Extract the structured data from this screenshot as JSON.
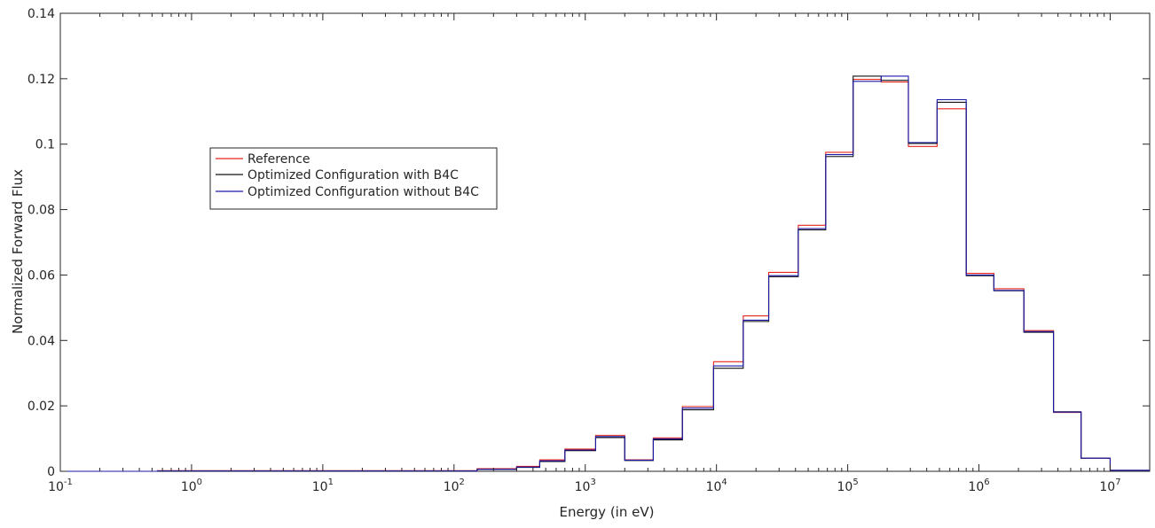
{
  "chart_data": {
    "type": "line",
    "step": true,
    "xlabel": "Energy (in eV)",
    "ylabel": "Normalized Forward Flux",
    "xscale": "log",
    "xlim": [
      0.1,
      20000000
    ],
    "ylim": [
      0,
      0.14
    ],
    "yticks": [
      0,
      0.02,
      0.04,
      0.06,
      0.08,
      0.1,
      0.12,
      0.14
    ],
    "ytick_labels": [
      "0",
      "0.02",
      "0.04",
      "0.06",
      "0.08",
      "0.1",
      "0.12",
      "0.14"
    ],
    "xticks": [
      {
        "value": 0.1,
        "base": "10",
        "exp": "-1"
      },
      {
        "value": 1,
        "base": "10",
        "exp": "0"
      },
      {
        "value": 10,
        "base": "10",
        "exp": "1"
      },
      {
        "value": 100,
        "base": "10",
        "exp": "2"
      },
      {
        "value": 1000,
        "base": "10",
        "exp": "3"
      },
      {
        "value": 10000,
        "base": "10",
        "exp": "4"
      },
      {
        "value": 100000,
        "base": "10",
        "exp": "5"
      },
      {
        "value": 1000000,
        "base": "10",
        "exp": "6"
      },
      {
        "value": 10000000,
        "base": "10",
        "exp": "7"
      }
    ],
    "grid": false,
    "legend_position": "upper-left",
    "bin_edges": [
      0.1,
      0.55,
      150,
      300,
      450,
      700,
      1200,
      2000,
      3300,
      5500,
      9500,
      16000,
      25000,
      42000,
      68000,
      110000,
      180000,
      290000,
      480000,
      800000,
      1300000,
      2200000,
      3700000,
      6000000,
      10000000,
      20000000
    ],
    "series": [
      {
        "name": "Reference",
        "color": "#e8261c",
        "values": [
          0,
          0.0002,
          0.0008,
          0.0015,
          0.0035,
          0.0068,
          0.011,
          0.0035,
          0.0102,
          0.0198,
          0.0335,
          0.0475,
          0.0608,
          0.0752,
          0.0975,
          0.1198,
          0.119,
          0.0993,
          0.1108,
          0.0605,
          0.0558,
          0.043,
          0.018,
          0.004,
          0.0003
        ]
      },
      {
        "name": "Optimized Configuration with B4C",
        "color": "#111111",
        "values": [
          0,
          0.0001,
          0.0006,
          0.0012,
          0.003,
          0.0063,
          0.0103,
          0.0033,
          0.0096,
          0.0188,
          0.0315,
          0.0458,
          0.0595,
          0.0738,
          0.0962,
          0.1208,
          0.1195,
          0.1002,
          0.1128,
          0.0598,
          0.0552,
          0.0425,
          0.0182,
          0.004,
          0.0003
        ]
      },
      {
        "name": "Optimized Configuration without B4C",
        "color": "#1a1aa8",
        "values": [
          0,
          0.0001,
          0.0006,
          0.0013,
          0.0032,
          0.0065,
          0.0106,
          0.0034,
          0.0099,
          0.0193,
          0.0322,
          0.0462,
          0.0598,
          0.0742,
          0.0968,
          0.1192,
          0.1208,
          0.1005,
          0.1136,
          0.06,
          0.0553,
          0.0427,
          0.0181,
          0.004,
          0.0003
        ]
      }
    ]
  }
}
